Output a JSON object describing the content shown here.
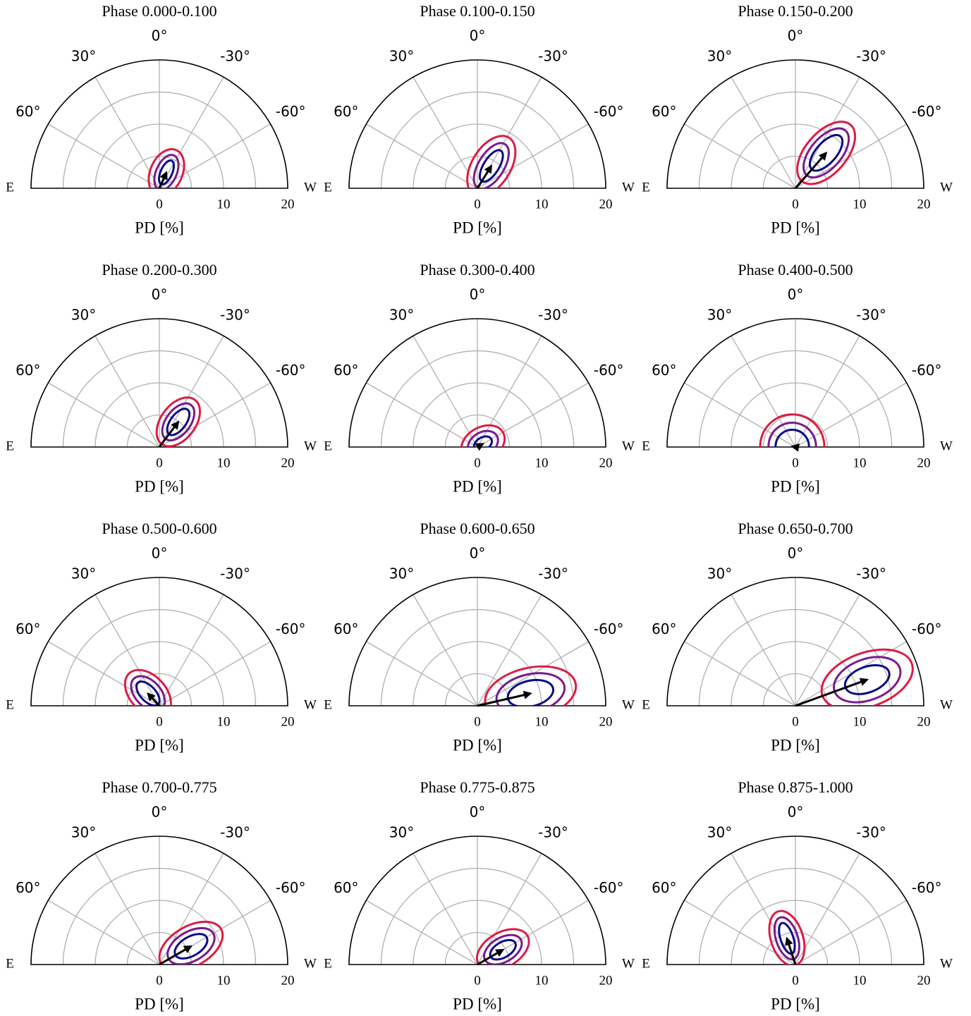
{
  "chart_data": {
    "type": "polar-grid",
    "xlabel": "PD [%]",
    "east": "E",
    "west": "W",
    "thetaticks": [
      {
        "value": 0,
        "label": "0°"
      },
      {
        "value": 30,
        "label": "30°"
      },
      {
        "value": -30,
        "label": "-30°"
      },
      {
        "value": 60,
        "label": "60°"
      },
      {
        "value": -60,
        "label": "-60°"
      }
    ],
    "rlim": [
      0,
      20
    ],
    "rticks": [
      0,
      10,
      20
    ],
    "rminor": [
      5,
      15
    ],
    "contour_colors": [
      "#0a0a8a",
      "#7a1a8e",
      "#dc1c44"
    ],
    "panels": [
      {
        "title": "Phase 0.000-0.100",
        "pd": 2.7,
        "pa": -24,
        "contours": [
          [
            2.0,
            0.9
          ],
          [
            2.9,
            1.6
          ],
          [
            3.8,
            2.5
          ]
        ]
      },
      {
        "title": "Phase 0.100-0.150",
        "pd": 4.1,
        "pa": -32,
        "contours": [
          [
            2.8,
            1.2
          ],
          [
            4.0,
            2.0
          ],
          [
            5.2,
            3.0
          ]
        ]
      },
      {
        "title": "Phase 0.150-0.200",
        "pd": 7.3,
        "pa": -41,
        "contours": [
          [
            3.4,
            1.6
          ],
          [
            4.6,
            2.4
          ],
          [
            5.8,
            3.2
          ]
        ]
      },
      {
        "title": "Phase 0.200-0.300",
        "pd": 4.9,
        "pa": -37,
        "contours": [
          [
            2.4,
            1.2
          ],
          [
            3.3,
            1.9
          ],
          [
            4.3,
            2.7
          ]
        ]
      },
      {
        "title": "Phase 0.300-0.400",
        "pd": 1.0,
        "pa": -60,
        "contours": [
          [
            1.5,
            1.0
          ],
          [
            2.5,
            1.8
          ],
          [
            3.6,
            2.6
          ]
        ]
      },
      {
        "title": "Phase 0.400-0.500",
        "pd": 0.5,
        "pa": 80,
        "contours": [
          [
            2.6,
            2.6
          ],
          [
            3.7,
            3.7
          ],
          [
            5.0,
            5.0
          ]
        ]
      },
      {
        "title": "Phase 0.500-0.600",
        "pd": 2.6,
        "pa": 43,
        "contours": [
          [
            2.3,
            1.2
          ],
          [
            3.2,
            2.0
          ],
          [
            4.3,
            2.8
          ]
        ]
      },
      {
        "title": "Phase 0.600-0.650",
        "pd": 8.5,
        "pa": -77,
        "contours": [
          [
            3.6,
            2.0
          ],
          [
            5.4,
            3.0
          ],
          [
            7.2,
            4.0
          ]
        ]
      },
      {
        "title": "Phase 0.650-0.700",
        "pd": 11.9,
        "pa": -70,
        "contours": [
          [
            3.6,
            2.0
          ],
          [
            5.4,
            3.2
          ],
          [
            7.4,
            4.2
          ]
        ]
      },
      {
        "title": "Phase 0.700-0.775",
        "pd": 5.7,
        "pa": -60,
        "contours": [
          [
            2.8,
            1.5
          ],
          [
            4.0,
            2.3
          ],
          [
            5.4,
            3.1
          ]
        ]
      },
      {
        "title": "Phase 0.775-0.875",
        "pd": 4.6,
        "pa": -60,
        "contours": [
          [
            2.2,
            1.2
          ],
          [
            3.2,
            1.9
          ],
          [
            4.4,
            2.7
          ]
        ]
      },
      {
        "title": "Phase 0.875-1.000",
        "pd": 4.3,
        "pa": 18,
        "contours": [
          [
            2.5,
            1.0
          ],
          [
            3.4,
            1.7
          ],
          [
            4.4,
            2.5
          ]
        ]
      }
    ]
  }
}
